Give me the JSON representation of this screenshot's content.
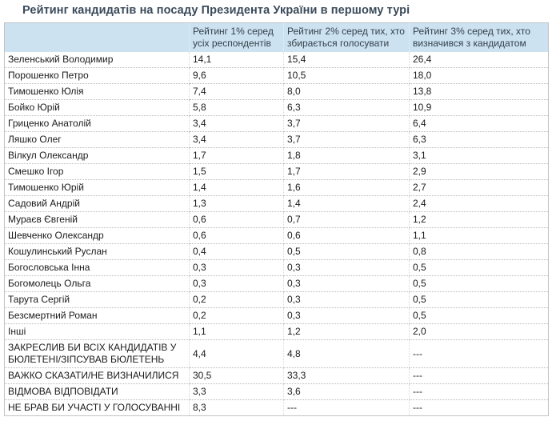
{
  "title": "Рейтинг кандидатів на посаду Президента України в першому турі",
  "colors": {
    "title_text": "#3a4a5a",
    "header_background": "#cce2f1",
    "body_text": "#1b1b1b",
    "table_border": "#c3c3c3",
    "row_separator_dotted": "#b9b9b9"
  },
  "chart_data": {
    "type": "table",
    "title": "Рейтинг кандидатів на посаду Президента України в першому турі",
    "columns": [
      "",
      "Рейтинг 1% серед усіх респондентів",
      "Рейтинг 2% серед тих, хто збирається голосувати",
      "Рейтинг 3% серед тих, хто визначився з кандидатом"
    ],
    "rows": [
      {
        "name": "Зеленський Володимир",
        "values": [
          "14,1",
          "15,4",
          "26,4"
        ]
      },
      {
        "name": "Порошенко Петро",
        "values": [
          "9,6",
          "10,5",
          "18,0"
        ]
      },
      {
        "name": "Тимошенко Юлія",
        "values": [
          "7,4",
          "8,0",
          "13,8"
        ]
      },
      {
        "name": "Бойко Юрій",
        "values": [
          "5,8",
          "6,3",
          "10,9"
        ]
      },
      {
        "name": "Гриценко Анатолій",
        "values": [
          "3,4",
          "3,7",
          "6,4"
        ]
      },
      {
        "name": "Ляшко Олег",
        "values": [
          "3,4",
          "3,7",
          "6,3"
        ]
      },
      {
        "name": "Вілкул Олександр",
        "values": [
          "1,7",
          "1,8",
          "3,1"
        ]
      },
      {
        "name": "Смешко Ігор",
        "values": [
          "1,5",
          "1,7",
          "2,9"
        ]
      },
      {
        "name": "Тимошенко Юрій",
        "values": [
          "1,4",
          "1,6",
          "2,7"
        ]
      },
      {
        "name": "Садовий Андрій",
        "values": [
          "1,3",
          "1,4",
          "2,4"
        ]
      },
      {
        "name": "Мураєв Євгеній",
        "values": [
          "0,6",
          "0,7",
          "1,2"
        ]
      },
      {
        "name": "Шевченко Олександр",
        "values": [
          "0,6",
          "0,6",
          "1,1"
        ]
      },
      {
        "name": "Кошулинський Руслан",
        "values": [
          "0,4",
          "0,5",
          "0,8"
        ]
      },
      {
        "name": "Богословська Інна",
        "values": [
          "0,3",
          "0,3",
          "0,5"
        ]
      },
      {
        "name": "Богомолець Ольга",
        "values": [
          "0,3",
          "0,3",
          "0,5"
        ]
      },
      {
        "name": "Тарута Сергій",
        "values": [
          "0,2",
          "0,3",
          "0,5"
        ]
      },
      {
        "name": "Безсмертний Роман",
        "values": [
          "0,2",
          "0,3",
          "0,5"
        ]
      },
      {
        "name": "Інші",
        "values": [
          "1,1",
          "1,2",
          "2,0"
        ]
      },
      {
        "name": "ЗАКРЕСЛИВ БИ ВСІХ КАНДИДАТІВ У БЮЛЕТЕНІ/ЗІПСУВАВ БЮЛЕТЕНЬ",
        "values": [
          "4,4",
          "4,8",
          "---"
        ]
      },
      {
        "name": "ВАЖКО СКАЗАТИ/НЕ ВИЗНАЧИЛИСЯ",
        "values": [
          "30,5",
          "33,3",
          "---"
        ]
      },
      {
        "name": "ВІДМОВА ВІДПОВІДАТИ",
        "values": [
          "3,3",
          "3,6",
          "---"
        ]
      },
      {
        "name": "НЕ БРАВ БИ УЧАСТІ У ГОЛОСУВАННІ",
        "values": [
          "8,3",
          "---",
          "---"
        ]
      }
    ]
  }
}
